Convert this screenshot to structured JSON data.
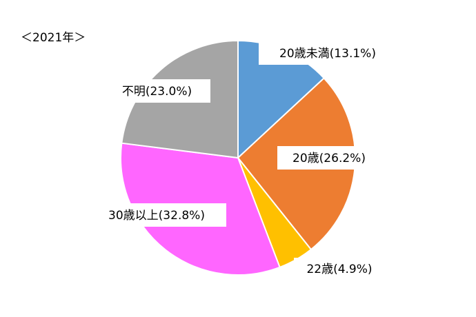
{
  "chart_data": {
    "type": "pie",
    "title": "",
    "subtitle": "＜2021年＞",
    "slices": [
      {
        "label": "20歳未満",
        "value": 13.1,
        "display": "20歳未満(13.1%)",
        "color": "#5B9BD5"
      },
      {
        "label": "20歳",
        "value": 26.2,
        "display": "20歳(26.2%)",
        "color": "#ED7D31"
      },
      {
        "label": "22歳",
        "value": 4.9,
        "display": "22歳(4.9%)",
        "color": "#FFC000"
      },
      {
        "label": "30歳以上",
        "value": 32.8,
        "display": "30歳以上(32.8%)",
        "color": "#FF66FF"
      },
      {
        "label": "不明",
        "value": 23.0,
        "display": "不明(23.0%)",
        "color": "#A5A5A5"
      }
    ],
    "legend": "none",
    "start": "12 o'clock",
    "direction": "clockwise"
  }
}
